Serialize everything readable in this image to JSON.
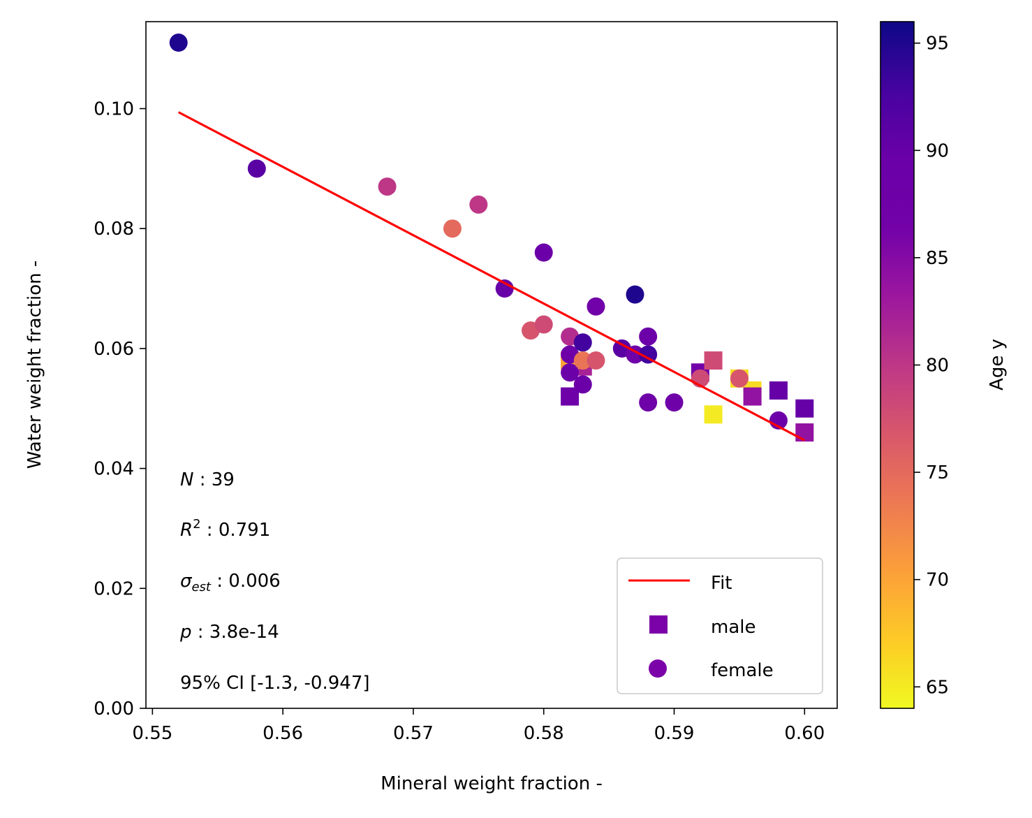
{
  "chart_data": {
    "type": "scatter",
    "xlabel": "Mineral weight fraction -",
    "ylabel": "Water weight fraction -",
    "xlim": [
      0.5495,
      0.6025
    ],
    "ylim": [
      0.0,
      0.1145
    ],
    "xticks": [
      0.55,
      0.56,
      0.57,
      0.58,
      0.59,
      0.6
    ],
    "xtick_labels": [
      "0.55",
      "0.56",
      "0.57",
      "0.58",
      "0.59",
      "0.60"
    ],
    "yticks": [
      0.0,
      0.02,
      0.04,
      0.06,
      0.08,
      0.1
    ],
    "ytick_labels": [
      "0.00",
      "0.02",
      "0.04",
      "0.06",
      "0.08",
      "0.10"
    ],
    "grid": false,
    "colormap": "plasma",
    "colorbar": {
      "label": "Age y",
      "range": [
        64,
        96
      ],
      "ticks": [
        65,
        70,
        75,
        80,
        85,
        90,
        95
      ],
      "tick_labels": [
        "65",
        "70",
        "75",
        "80",
        "85",
        "90",
        "95"
      ]
    },
    "fit": {
      "name": "Fit",
      "color": "#ff0000",
      "x": [
        0.552,
        0.6
      ],
      "y": [
        0.0994,
        0.0447
      ]
    },
    "series": [
      {
        "name": "male",
        "marker": "square",
        "points": [
          {
            "x": 0.582,
            "y": 0.052,
            "age": 88
          },
          {
            "x": 0.583,
            "y": 0.057,
            "age": 82
          },
          {
            "x": 0.582,
            "y": 0.058,
            "age": 70
          },
          {
            "x": 0.592,
            "y": 0.056,
            "age": 87
          },
          {
            "x": 0.593,
            "y": 0.058,
            "age": 78
          },
          {
            "x": 0.593,
            "y": 0.049,
            "age": 65
          },
          {
            "x": 0.595,
            "y": 0.055,
            "age": 66
          },
          {
            "x": 0.596,
            "y": 0.053,
            "age": 66
          },
          {
            "x": 0.596,
            "y": 0.052,
            "age": 84
          },
          {
            "x": 0.598,
            "y": 0.053,
            "age": 90
          },
          {
            "x": 0.6,
            "y": 0.05,
            "age": 90
          },
          {
            "x": 0.6,
            "y": 0.046,
            "age": 84
          }
        ]
      },
      {
        "name": "female",
        "marker": "circle",
        "points": [
          {
            "x": 0.552,
            "y": 0.111,
            "age": 95
          },
          {
            "x": 0.558,
            "y": 0.09,
            "age": 91
          },
          {
            "x": 0.568,
            "y": 0.087,
            "age": 80
          },
          {
            "x": 0.573,
            "y": 0.08,
            "age": 75
          },
          {
            "x": 0.575,
            "y": 0.084,
            "age": 80
          },
          {
            "x": 0.577,
            "y": 0.07,
            "age": 90
          },
          {
            "x": 0.58,
            "y": 0.076,
            "age": 89
          },
          {
            "x": 0.579,
            "y": 0.063,
            "age": 77
          },
          {
            "x": 0.58,
            "y": 0.064,
            "age": 78
          },
          {
            "x": 0.582,
            "y": 0.062,
            "age": 81
          },
          {
            "x": 0.582,
            "y": 0.059,
            "age": 88
          },
          {
            "x": 0.582,
            "y": 0.056,
            "age": 89
          },
          {
            "x": 0.583,
            "y": 0.061,
            "age": 93
          },
          {
            "x": 0.583,
            "y": 0.058,
            "age": 74
          },
          {
            "x": 0.583,
            "y": 0.054,
            "age": 89
          },
          {
            "x": 0.584,
            "y": 0.067,
            "age": 87
          },
          {
            "x": 0.584,
            "y": 0.058,
            "age": 77
          },
          {
            "x": 0.586,
            "y": 0.06,
            "age": 91
          },
          {
            "x": 0.587,
            "y": 0.069,
            "age": 95
          },
          {
            "x": 0.587,
            "y": 0.059,
            "age": 88
          },
          {
            "x": 0.588,
            "y": 0.062,
            "age": 89
          },
          {
            "x": 0.588,
            "y": 0.059,
            "age": 93
          },
          {
            "x": 0.588,
            "y": 0.051,
            "age": 88
          },
          {
            "x": 0.59,
            "y": 0.051,
            "age": 88
          },
          {
            "x": 0.592,
            "y": 0.055,
            "age": 78
          },
          {
            "x": 0.595,
            "y": 0.055,
            "age": 77
          },
          {
            "x": 0.598,
            "y": 0.048,
            "age": 89
          }
        ]
      }
    ],
    "legend": {
      "placement": "lower-right",
      "entries": [
        {
          "label": "Fit",
          "kind": "line",
          "color": "#ff0000"
        },
        {
          "label": "male",
          "kind": "square",
          "color": "#7b02a8"
        },
        {
          "label": "female",
          "kind": "circle",
          "color": "#7b02a8"
        }
      ]
    },
    "stats": {
      "n_label": "N",
      "n_value": " : 39",
      "r2_label": "R",
      "r2_sup": "2",
      "r2_value": " : 0.791",
      "sigma_label": "σ",
      "sigma_sub": "est",
      "sigma_value": " : 0.006",
      "p_label": "p",
      "p_value": " : 3.8e-14",
      "ci_text": "95% CI [-1.3,  -0.947]"
    }
  }
}
